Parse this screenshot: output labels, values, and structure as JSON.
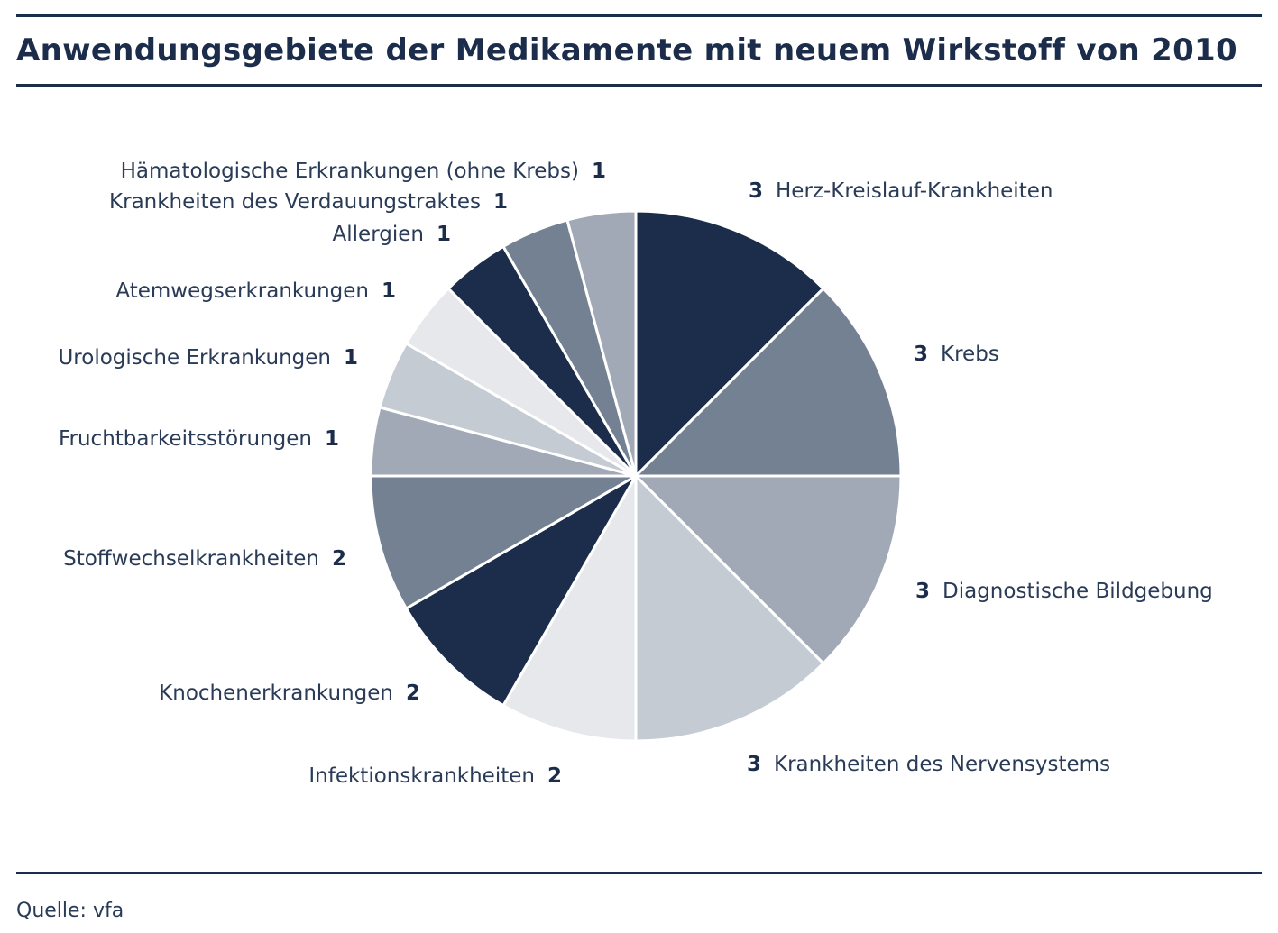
{
  "title": "Anwendungsgebiete der Medikamente mit neuem Wirkstoff von 2010",
  "source": "Quelle: vfa",
  "colors": {
    "navy": "#1b2d4a",
    "slate": "#748192",
    "grey": "#a1a9b6",
    "light": "#c5cbd3",
    "pale": "#e6e8ec"
  },
  "chart_data": {
    "type": "pie",
    "title": "Anwendungsgebiete der Medikamente mit neuem Wirkstoff von 2010",
    "slices": [
      {
        "label": "Herz-Kreislauf-Krankheiten",
        "value": 3,
        "color": "#1b2d4a"
      },
      {
        "label": "Krebs",
        "value": 3,
        "color": "#748192"
      },
      {
        "label": "Diagnostische Bildgebung",
        "value": 3,
        "color": "#a1a9b6"
      },
      {
        "label": "Krankheiten des Nervensystems",
        "value": 3,
        "color": "#c5cbd3"
      },
      {
        "label": "Infektionskrankheiten",
        "value": 2,
        "color": "#e6e8ec"
      },
      {
        "label": "Knochenerkrankungen",
        "value": 2,
        "color": "#1b2d4a"
      },
      {
        "label": "Stoffwechselkrankheiten",
        "value": 2,
        "color": "#748192"
      },
      {
        "label": "Fruchtbarkeitsstörungen",
        "value": 1,
        "color": "#a1a9b6"
      },
      {
        "label": "Urologische Erkrankungen",
        "value": 1,
        "color": "#c5cbd3"
      },
      {
        "label": "Atemwegserkrankungen",
        "value": 1,
        "color": "#e6e8ec"
      },
      {
        "label": "Allergien",
        "value": 1,
        "color": "#1b2d4a"
      },
      {
        "label": "Krankheiten des Verdauungstraktes",
        "value": 1,
        "color": "#748192"
      },
      {
        "label": "Hämatologische Erkrankungen (ohne Krebs)",
        "value": 1,
        "color": "#a1a9b6"
      }
    ],
    "start_angle": "12 o'clock",
    "direction": "clockwise",
    "legend": "none (labels beside slices)"
  }
}
